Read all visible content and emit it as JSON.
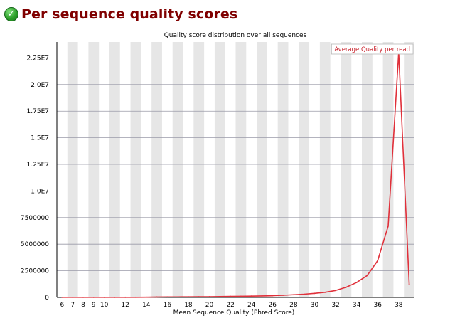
{
  "header": {
    "title": "Per sequence quality scores",
    "status_icon": "pass-check-icon"
  },
  "colors": {
    "title": "#800000",
    "line": "#e0303a",
    "band": "#e6e6e6",
    "grid": "#9a9aa8",
    "legend_text": "#c8202a"
  },
  "chart_data": {
    "type": "line",
    "title": "Quality score distribution over all sequences",
    "xlabel": "Mean Sequence Quality (Phred Score)",
    "ylabel": "",
    "xlim": [
      6,
      39
    ],
    "ylim": [
      0,
      24000000
    ],
    "x_ticks": [
      "6",
      "7",
      "8",
      "9",
      "10",
      "12",
      "14",
      "16",
      "18",
      "20",
      "22",
      "24",
      "26",
      "28",
      "30",
      "32",
      "34",
      "36",
      "38"
    ],
    "y_ticks": [
      {
        "value": 0,
        "label": "0"
      },
      {
        "value": 2500000,
        "label": "2500000"
      },
      {
        "value": 5000000,
        "label": "5000000"
      },
      {
        "value": 7500000,
        "label": "7500000"
      },
      {
        "value": 10000000,
        "label": "1.0E7"
      },
      {
        "value": 12500000,
        "label": "1.25E7"
      },
      {
        "value": 15000000,
        "label": "1.5E7"
      },
      {
        "value": 17500000,
        "label": "1.75E7"
      },
      {
        "value": 20000000,
        "label": "2.0E7"
      },
      {
        "value": 22500000,
        "label": "2.25E7"
      }
    ],
    "legend": [
      "Average Quality per read"
    ],
    "legend_position": "top-right",
    "series": [
      {
        "name": "Average Quality per read",
        "x": [
          6,
          7,
          8,
          9,
          10,
          11,
          12,
          13,
          14,
          15,
          16,
          17,
          18,
          19,
          20,
          21,
          22,
          23,
          24,
          25,
          26,
          27,
          28,
          29,
          30,
          31,
          32,
          33,
          34,
          35,
          36,
          37,
          38,
          39
        ],
        "values": [
          10000,
          10000,
          10000,
          10000,
          10000,
          10000,
          12000,
          15000,
          20000,
          40000,
          50000,
          50000,
          55000,
          60000,
          65000,
          80000,
          95000,
          105000,
          120000,
          135000,
          160000,
          200000,
          250000,
          300000,
          380000,
          480000,
          650000,
          950000,
          1400000,
          2050000,
          3450000,
          6700000,
          23000000,
          1200000
        ]
      }
    ]
  }
}
